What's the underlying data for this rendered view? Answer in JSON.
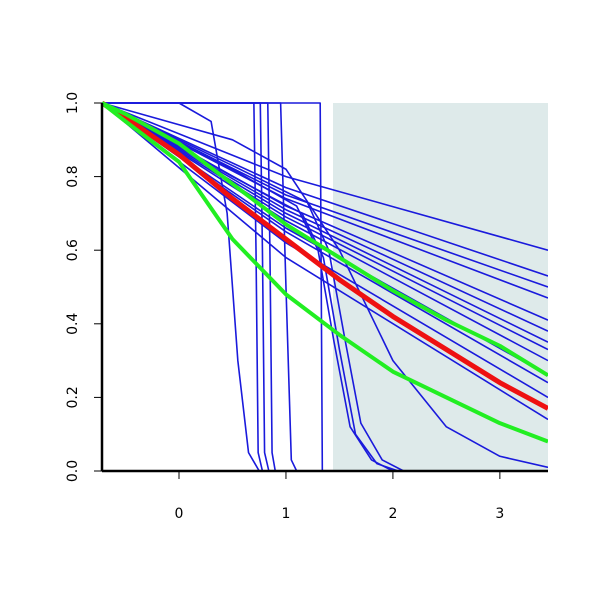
{
  "chart_data": {
    "type": "line",
    "xlim": [
      -0.72,
      3.45
    ],
    "ylim": [
      0,
      1
    ],
    "xticks": [
      0,
      1,
      2,
      3
    ],
    "yticks": [
      {
        "value": 0,
        "label": "0.0"
      },
      0.2,
      0.4,
      0.6,
      0.8,
      {
        "value": 1,
        "label": "1.0"
      }
    ],
    "shade": {
      "xlim": [
        1.44,
        3.45
      ],
      "color": "#deeaea"
    },
    "series": [
      {
        "color": "#1a1adc",
        "x": [
          -0.72,
          1,
          3.45
        ],
        "values": [
          1,
          0.8,
          0.6
        ]
      },
      {
        "color": "#1a1adc",
        "x": [
          -0.72,
          1,
          3.45
        ],
        "values": [
          1,
          0.77,
          0.53
        ]
      },
      {
        "color": "#1a1adc",
        "x": [
          -0.72,
          1,
          3.45
        ],
        "values": [
          1,
          0.75,
          0.5
        ]
      },
      {
        "color": "#1a1adc",
        "x": [
          -0.72,
          1,
          3.45
        ],
        "values": [
          1,
          0.74,
          0.47
        ]
      },
      {
        "color": "#1a1adc",
        "x": [
          -0.72,
          1,
          3.45
        ],
        "values": [
          1,
          0.72,
          0.41
        ]
      },
      {
        "color": "#1a1adc",
        "x": [
          -0.72,
          1,
          3.45
        ],
        "values": [
          1,
          0.71,
          0.38
        ]
      },
      {
        "color": "#1a1adc",
        "x": [
          -0.72,
          1,
          3.45
        ],
        "values": [
          1,
          0.7,
          0.35
        ]
      },
      {
        "color": "#1a1adc",
        "x": [
          -0.72,
          1,
          3.45
        ],
        "values": [
          1,
          0.69,
          0.33
        ]
      },
      {
        "color": "#1a1adc",
        "x": [
          -0.72,
          1,
          3.45
        ],
        "values": [
          1,
          0.68,
          0.3
        ]
      },
      {
        "color": "#1a1adc",
        "x": [
          -0.72,
          1,
          3.45
        ],
        "values": [
          1,
          0.66,
          0.26
        ]
      },
      {
        "color": "#1a1adc",
        "x": [
          -0.72,
          1,
          3.45
        ],
        "values": [
          1,
          0.65,
          0.24
        ]
      },
      {
        "color": "#1a1adc",
        "x": [
          -0.72,
          1,
          3.45
        ],
        "values": [
          1,
          0.62,
          0.2
        ]
      },
      {
        "color": "#1a1adc",
        "x": [
          -0.72,
          1,
          3.45
        ],
        "values": [
          1,
          0.58,
          0.14
        ]
      },
      {
        "color": "#1a1adc",
        "x": [
          -0.72,
          0,
          0.3,
          0.45,
          0.55,
          0.65,
          0.75
        ],
        "values": [
          1,
          1,
          0.95,
          0.7,
          0.3,
          0.05,
          0
        ]
      },
      {
        "color": "#1a1adc",
        "x": [
          -0.72,
          0.7,
          0.72,
          0.74,
          0.78
        ],
        "values": [
          1,
          1,
          0.6,
          0.05,
          0
        ]
      },
      {
        "color": "#1a1adc",
        "x": [
          -0.72,
          0.76,
          0.78,
          0.8,
          0.84
        ],
        "values": [
          1,
          1,
          0.6,
          0.05,
          0
        ]
      },
      {
        "color": "#1a1adc",
        "x": [
          -0.72,
          0.83,
          0.85,
          0.87,
          0.9
        ],
        "values": [
          1,
          1,
          0.6,
          0.05,
          0
        ]
      },
      {
        "color": "#1a1adc",
        "x": [
          -0.72,
          0.95,
          1,
          1.05,
          1.1
        ],
        "values": [
          1,
          1,
          0.5,
          0.03,
          0
        ]
      },
      {
        "color": "#1a1adc",
        "x": [
          -0.72,
          1.32,
          1.33,
          1.34,
          1.44
        ],
        "values": [
          1,
          1,
          0.5,
          0,
          0
        ]
      },
      {
        "color": "#1a1adc",
        "x": [
          -0.72,
          0.5,
          1.1,
          1.3,
          1.45,
          1.6,
          1.8,
          2.0
        ],
        "values": [
          1,
          0.82,
          0.72,
          0.6,
          0.35,
          0.12,
          0.03,
          0
        ]
      },
      {
        "color": "#1a1adc",
        "x": [
          -0.72,
          0.5,
          1.15,
          1.35,
          1.5,
          1.65,
          1.85,
          2.05
        ],
        "values": [
          1,
          0.8,
          0.7,
          0.58,
          0.33,
          0.1,
          0.02,
          0
        ]
      },
      {
        "color": "#1a1adc",
        "x": [
          -0.72,
          0.5,
          1.2,
          1.4,
          1.55,
          1.7,
          1.9,
          2.1
        ],
        "values": [
          1,
          0.83,
          0.73,
          0.6,
          0.36,
          0.13,
          0.03,
          0
        ]
      },
      {
        "color": "#1a1adc",
        "x": [
          -0.72,
          0.5,
          1,
          1.5,
          2,
          2.5,
          3,
          3.45
        ],
        "values": [
          1,
          0.9,
          0.82,
          0.6,
          0.3,
          0.12,
          0.04,
          0.01
        ]
      },
      {
        "color": "#ee1111",
        "width": 5,
        "x": [
          -0.72,
          -0.5,
          0,
          0.5,
          1,
          1.5,
          2,
          2.5,
          3,
          3.45
        ],
        "values": [
          1,
          0.96,
          0.86,
          0.74,
          0.63,
          0.52,
          0.42,
          0.33,
          0.24,
          0.17
        ]
      },
      {
        "color": "#22ee22",
        "width": 4,
        "x": [
          -0.72,
          -0.5,
          0,
          0.5,
          1,
          1.5,
          2,
          2.5,
          3,
          3.45
        ],
        "values": [
          1,
          0.97,
          0.89,
          0.78,
          0.67,
          0.58,
          0.49,
          0.41,
          0.34,
          0.26
        ]
      },
      {
        "color": "#22ee22",
        "width": 4,
        "x": [
          -0.72,
          -0.5,
          0,
          0.5,
          1,
          1.5,
          2,
          2.5,
          3,
          3.45
        ],
        "values": [
          1,
          0.95,
          0.84,
          0.63,
          0.48,
          0.37,
          0.27,
          0.2,
          0.13,
          0.08
        ]
      }
    ]
  }
}
